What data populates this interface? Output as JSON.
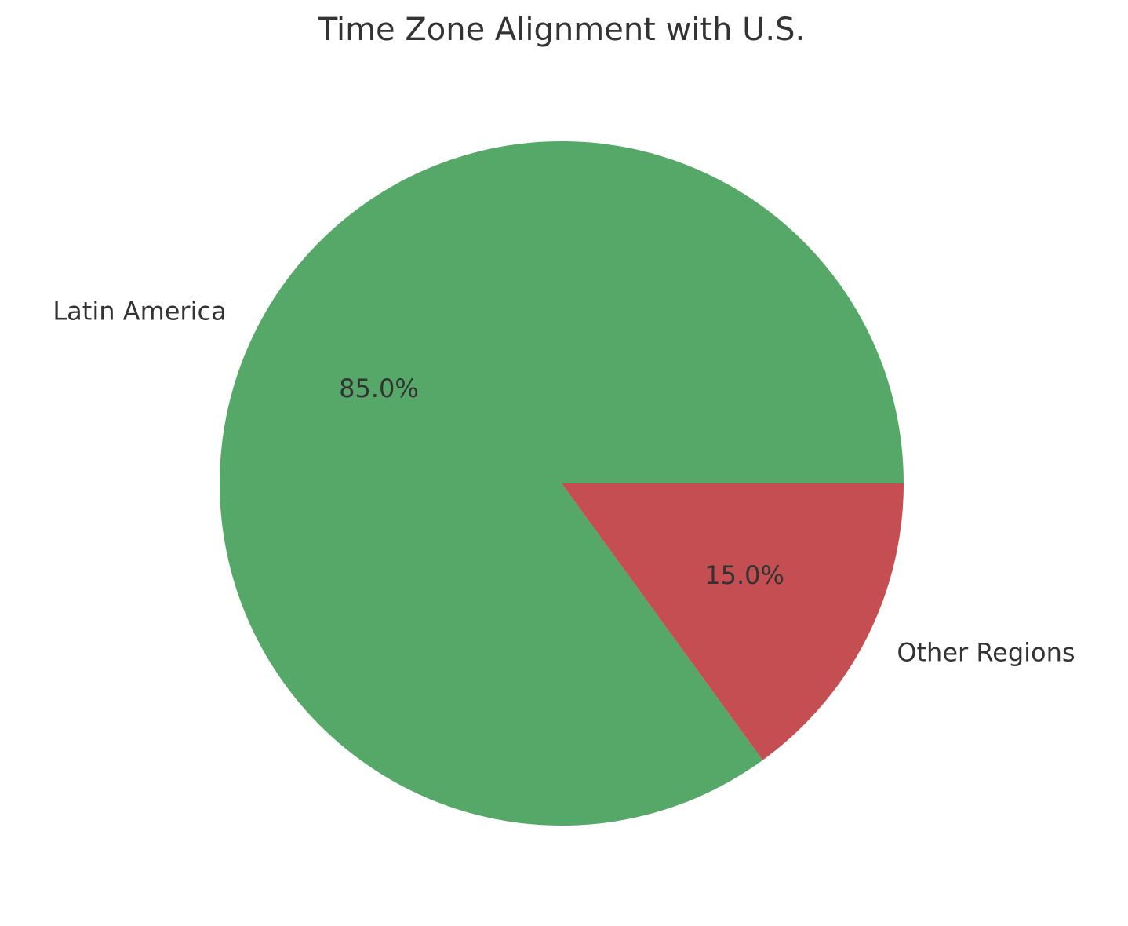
{
  "chart_data": {
    "type": "pie",
    "title": "Time Zone Alignment with U.S.",
    "categories": [
      "Latin America",
      "Other Regions"
    ],
    "values": [
      85,
      15
    ],
    "value_labels": [
      "85.0%",
      "15.0%"
    ],
    "colors": [
      "#55a868",
      "#c44e52"
    ]
  }
}
